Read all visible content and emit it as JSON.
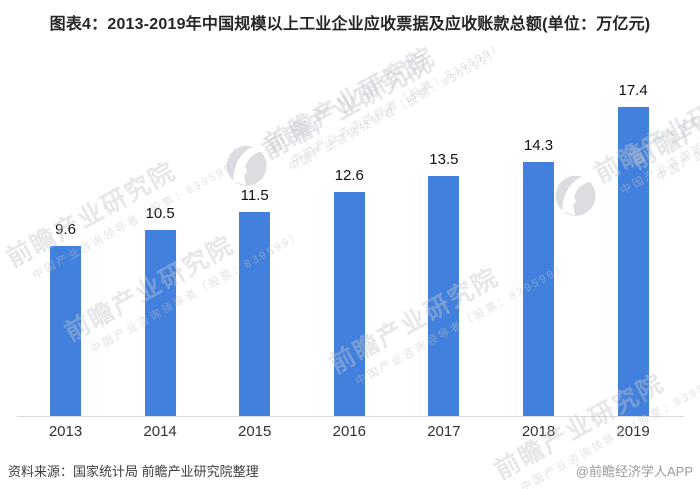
{
  "title": "图表4：2013-2019年中国规模以上工业企业应收票据及应收账款总额(单位：万亿元)",
  "chart_data": {
    "type": "bar",
    "title": "2013-2019年中国规模以上工业企业应收票据及应收账款总额",
    "unit": "万亿元",
    "categories": [
      "2013",
      "2014",
      "2015",
      "2016",
      "2017",
      "2018",
      "2019"
    ],
    "values": [
      9.6,
      10.5,
      11.5,
      12.6,
      13.5,
      14.3,
      17.4
    ],
    "value_labels": [
      "9.6",
      "10.5",
      "11.5",
      "12.6",
      "13.5",
      "14.3",
      "17.4"
    ],
    "xlabel": "",
    "ylabel": "",
    "ylim": [
      0,
      18
    ],
    "grid": false,
    "legend": "none",
    "bar_color": "#4180dc"
  },
  "footer": {
    "source": "资料来源：国家统计局 前瞻产业研究院整理",
    "credit": "@前瞻经济学人APP"
  },
  "watermark": {
    "brand": "前瞻产业研究院",
    "tagline": "中国产业咨询领导者（股票：839599）",
    "logo": "qianzhan-eye-logo"
  },
  "colors": {
    "bar": "#4180dc",
    "axis_line": "#d9d9d9",
    "title": "#262626",
    "value_label": "#111111",
    "x_label": "#333333",
    "source": "#3d3d3d",
    "credit": "#9b9b9b"
  }
}
